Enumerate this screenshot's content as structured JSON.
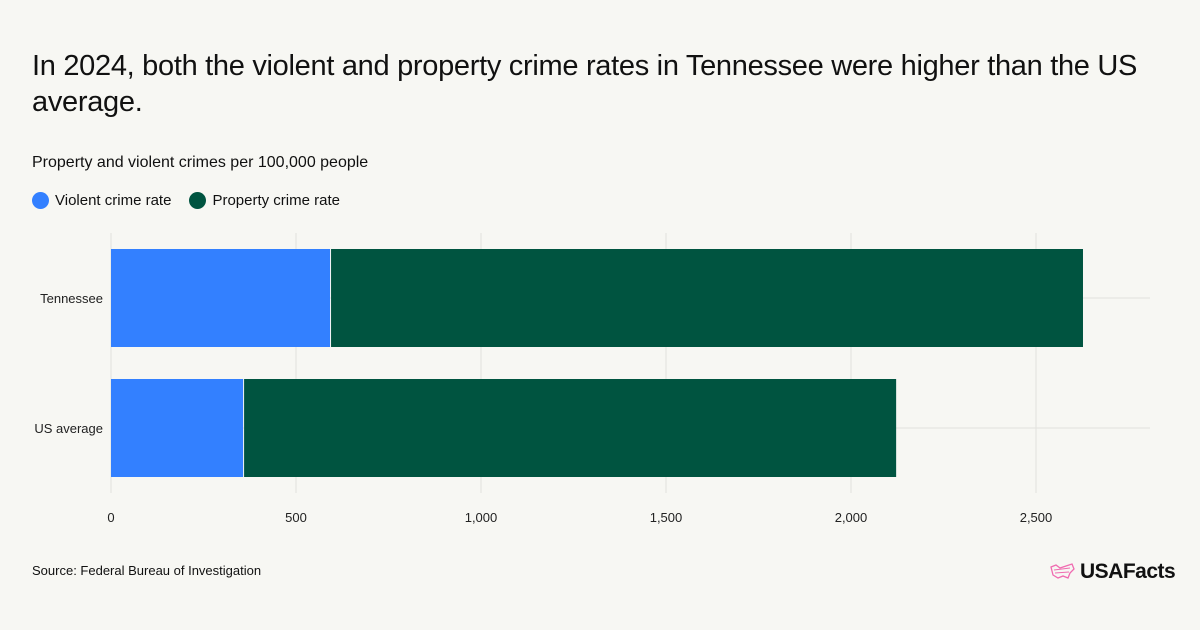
{
  "title": "In 2024, both the violent and property crime rates in Tennessee were higher than the US average.",
  "subtitle": "Property and violent crimes per 100,000 people",
  "source": "Source: Federal Bureau of Investigation",
  "logo_text": "USAFacts",
  "chart_data": {
    "type": "bar",
    "orientation": "horizontal",
    "stacked": true,
    "categories": [
      "Tennessee",
      "US average"
    ],
    "series": [
      {
        "name": "Violent crime rate",
        "values": [
          592,
          357
        ],
        "color": "#3380ff"
      },
      {
        "name": "Property crime rate",
        "values": [
          2035,
          1765
        ],
        "color": "#005440"
      }
    ],
    "xlim": [
      0,
      2800
    ],
    "xticks": [
      0,
      500,
      1000,
      1500,
      2000,
      2500
    ],
    "xtick_labels": [
      "0",
      "500",
      "1,000",
      "1,500",
      "2,000",
      "2,500"
    ],
    "grid": true,
    "legend_position": "top-left"
  }
}
